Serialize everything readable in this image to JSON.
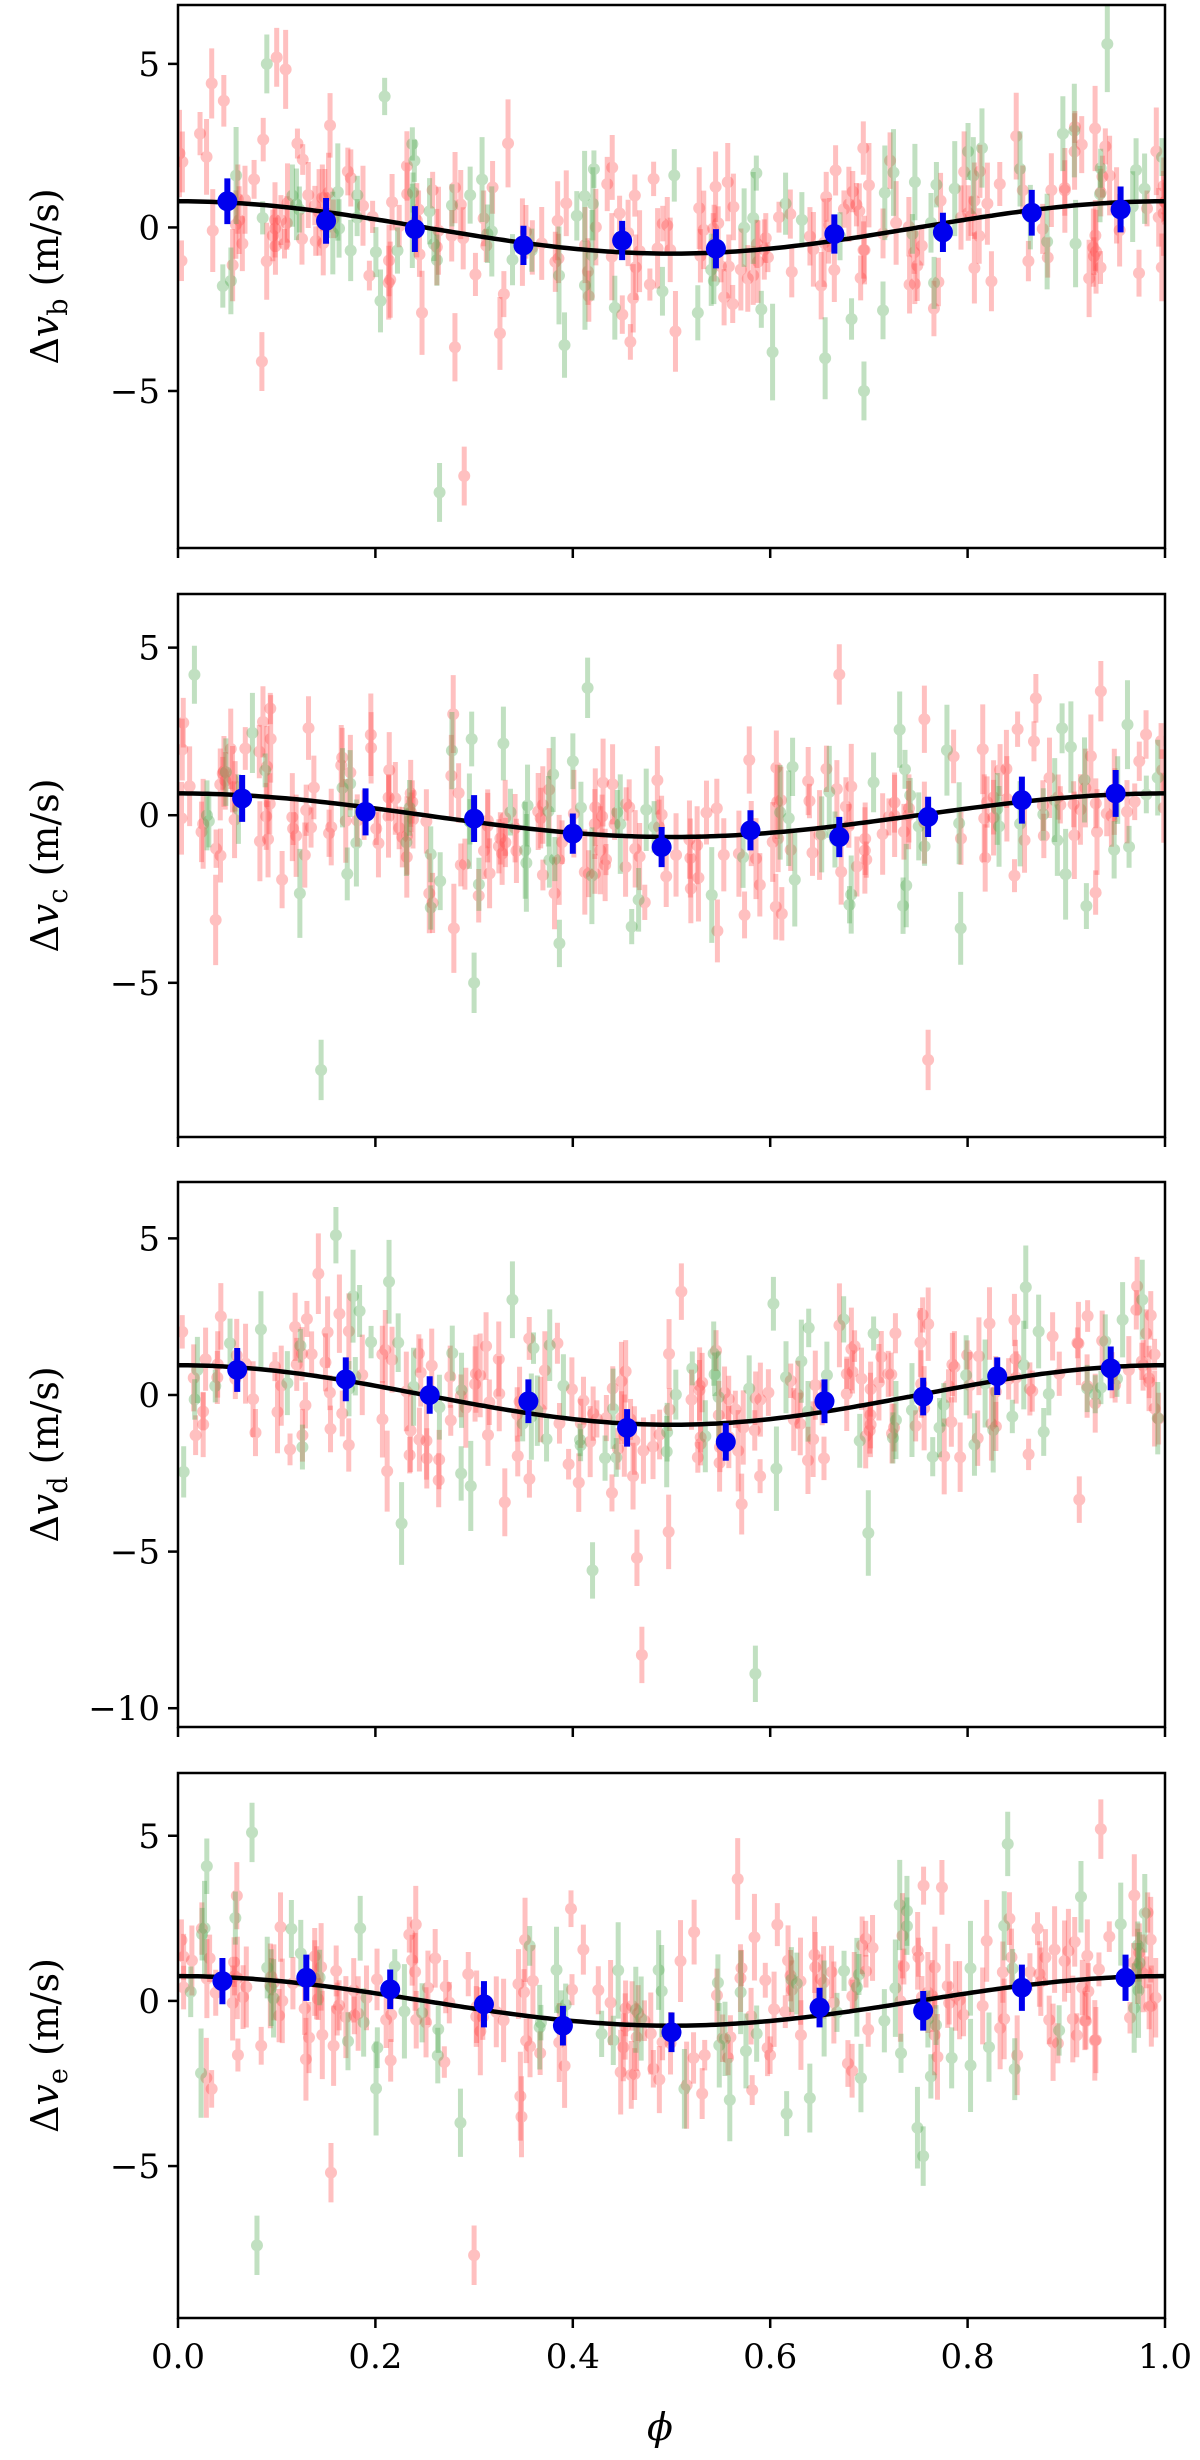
{
  "figure": {
    "xlabel": "ϕ"
  },
  "colors": {
    "instrument_a": "#ff4d4d",
    "instrument_b": "#4fa84f",
    "binned": "#0000ee",
    "model": "#000000"
  },
  "chart_data": [
    {
      "type": "scatter",
      "panel": "b",
      "ylabel_prefix": "Δv",
      "ylabel_sub": "b",
      "ylabel_suffix": " (m/s)",
      "xlim": [
        0,
        1
      ],
      "ylim": [
        -9.8,
        6.8
      ],
      "yticks": [
        5,
        0,
        -5
      ],
      "xticks": [
        0,
        0.2,
        0.4,
        0.6,
        0.8,
        1.0
      ],
      "show_xtick_labels": false,
      "model": {
        "amplitude": 0.8,
        "phase_of_min": 0.5,
        "offset": 0
      },
      "series": [
        {
          "name": "binned",
          "x": [
            0.05,
            0.15,
            0.24,
            0.35,
            0.45,
            0.545,
            0.665,
            0.775,
            0.865,
            0.955
          ],
          "y": [
            0.8,
            0.2,
            -0.05,
            -0.55,
            -0.4,
            -0.65,
            -0.2,
            -0.15,
            0.45,
            0.55
          ],
          "err": [
            0.7,
            0.7,
            0.7,
            0.6,
            0.6,
            0.6,
            0.6,
            0.6,
            0.7,
            0.7
          ]
        }
      ],
      "outliers": [
        {
          "name": "instrument_b",
          "x": [
            0.265,
            0.09,
            0.695
          ],
          "y": [
            -8.1,
            5.0,
            -5.0
          ]
        },
        {
          "name": "instrument_a",
          "x": [
            0.29,
            0.085,
            0.1
          ],
          "y": [
            -7.6,
            -4.1,
            5.2
          ]
        }
      ],
      "scatter_spread": 1.6,
      "n_points_a": 200,
      "n_points_b": 80
    },
    {
      "type": "scatter",
      "panel": "c",
      "ylabel_prefix": "Δv",
      "ylabel_sub": "c",
      "ylabel_suffix": " (m/s)",
      "xlim": [
        0,
        1
      ],
      "ylim": [
        -9.6,
        6.6
      ],
      "yticks": [
        5,
        0,
        -5
      ],
      "xticks": [
        0,
        0.2,
        0.4,
        0.6,
        0.8,
        1.0
      ],
      "show_xtick_labels": false,
      "model": {
        "amplitude": 0.65,
        "phase_of_min": 0.5,
        "offset": 0
      },
      "series": [
        {
          "name": "binned",
          "x": [
            0.065,
            0.19,
            0.3,
            0.4,
            0.49,
            0.58,
            0.67,
            0.76,
            0.855,
            0.95
          ],
          "y": [
            0.5,
            0.1,
            -0.1,
            -0.55,
            -0.95,
            -0.45,
            -0.65,
            -0.05,
            0.45,
            0.65
          ],
          "err": [
            0.7,
            0.7,
            0.7,
            0.6,
            0.6,
            0.6,
            0.6,
            0.6,
            0.7,
            0.7
          ]
        }
      ],
      "outliers": [
        {
          "name": "instrument_b",
          "x": [
            0.145,
            0.3,
            0.415
          ],
          "y": [
            -7.6,
            -5.0,
            3.8
          ]
        },
        {
          "name": "instrument_a",
          "x": [
            0.76,
            0.67,
            0.935
          ],
          "y": [
            -7.3,
            4.2,
            3.7
          ]
        }
      ],
      "scatter_spread": 1.6,
      "n_points_a": 200,
      "n_points_b": 80
    },
    {
      "type": "scatter",
      "panel": "d",
      "ylabel_prefix": "Δv",
      "ylabel_sub": "d",
      "ylabel_suffix": " (m/s)",
      "xlim": [
        0,
        1
      ],
      "ylim": [
        -10.6,
        6.8
      ],
      "yticks": [
        5,
        0,
        -5,
        -10
      ],
      "xticks": [
        0,
        0.2,
        0.4,
        0.6,
        0.8,
        1.0
      ],
      "show_xtick_labels": false,
      "model": {
        "amplitude": 0.95,
        "phase_of_min": 0.5,
        "offset": 0
      },
      "series": [
        {
          "name": "binned",
          "x": [
            0.06,
            0.17,
            0.255,
            0.355,
            0.455,
            0.555,
            0.655,
            0.755,
            0.83,
            0.945
          ],
          "y": [
            0.8,
            0.5,
            0.0,
            -0.2,
            -1.05,
            -1.5,
            -0.2,
            -0.05,
            0.6,
            0.85
          ],
          "err": [
            0.7,
            0.7,
            0.6,
            0.7,
            0.6,
            0.6,
            0.7,
            0.6,
            0.6,
            0.7
          ]
        }
      ],
      "outliers": [
        {
          "name": "instrument_b",
          "x": [
            0.585,
            0.42,
            0.16
          ],
          "y": [
            -8.9,
            -5.6,
            5.1
          ]
        },
        {
          "name": "instrument_a",
          "x": [
            0.47,
            0.465,
            0.51
          ],
          "y": [
            -8.3,
            -5.2,
            3.3
          ]
        }
      ],
      "scatter_spread": 1.7,
      "n_points_a": 200,
      "n_points_b": 80
    },
    {
      "type": "scatter",
      "panel": "e",
      "ylabel_prefix": "Δv",
      "ylabel_sub": "e",
      "ylabel_suffix": " (m/s)",
      "xlim": [
        0,
        1
      ],
      "ylim": [
        -9.6,
        6.9
      ],
      "yticks": [
        5,
        0,
        -5
      ],
      "xticks": [
        0,
        0.2,
        0.4,
        0.6,
        0.8,
        1.0
      ],
      "xtick_labels": [
        "0.0",
        "0.2",
        "0.4",
        "0.6",
        "0.8",
        "1.0"
      ],
      "show_xtick_labels": true,
      "model": {
        "amplitude": 0.75,
        "phase_of_min": 0.5,
        "offset": 0
      },
      "series": [
        {
          "name": "binned",
          "x": [
            0.045,
            0.13,
            0.215,
            0.31,
            0.39,
            0.5,
            0.65,
            0.755,
            0.855,
            0.96
          ],
          "y": [
            0.6,
            0.7,
            0.35,
            -0.1,
            -0.75,
            -0.95,
            -0.2,
            -0.3,
            0.4,
            0.7
          ],
          "err": [
            0.7,
            0.7,
            0.6,
            0.7,
            0.6,
            0.6,
            0.6,
            0.6,
            0.7,
            0.7
          ]
        }
      ],
      "outliers": [
        {
          "name": "instrument_b",
          "x": [
            0.08,
            0.755,
            0.075
          ],
          "y": [
            -7.4,
            -4.7,
            5.1
          ]
        },
        {
          "name": "instrument_a",
          "x": [
            0.3,
            0.155,
            0.935
          ],
          "y": [
            -7.7,
            -5.2,
            5.2
          ]
        }
      ],
      "scatter_spread": 1.6,
      "n_points_a": 200,
      "n_points_b": 80
    }
  ]
}
